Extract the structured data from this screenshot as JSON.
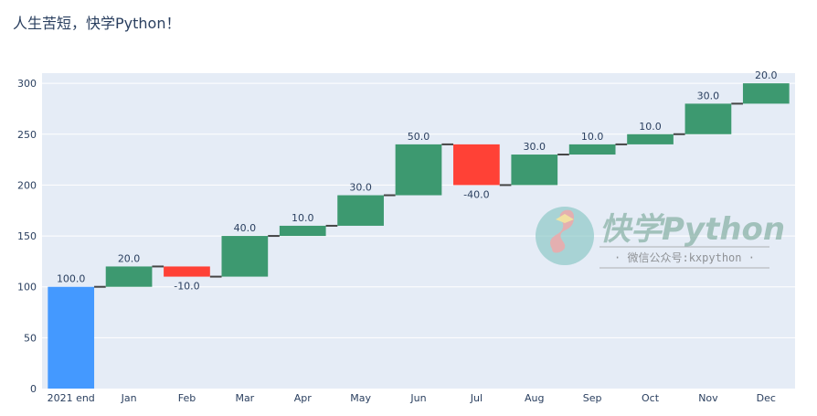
{
  "title": "人生苦短，快学Python！",
  "chart_data": {
    "type": "waterfall",
    "categories": [
      "2021 end",
      "Jan",
      "Feb",
      "Mar",
      "Apr",
      "May",
      "Jun",
      "Jul",
      "Aug",
      "Sep",
      "Oct",
      "Nov",
      "Dec"
    ],
    "measures": [
      "absolute",
      "relative",
      "relative",
      "relative",
      "relative",
      "relative",
      "relative",
      "relative",
      "relative",
      "relative",
      "relative",
      "relative",
      "relative"
    ],
    "values": [
      100,
      20,
      -10,
      40,
      10,
      30,
      50,
      -40,
      30,
      10,
      10,
      30,
      20
    ],
    "data_labels": [
      "100.0",
      "20.0",
      "-10.0",
      "40.0",
      "10.0",
      "30.0",
      "50.0",
      "-40.0",
      "30.0",
      "10.0",
      "10.0",
      "30.0",
      "20.0"
    ],
    "ylim": [
      0,
      310
    ],
    "yticks": [
      0,
      50,
      100,
      150,
      200,
      250,
      300
    ],
    "grid": true,
    "colors": {
      "total": "#4499ff",
      "increasing": "#3d9970",
      "decreasing": "#ff4136",
      "connector": "#444444",
      "plot_bg": "#e5ecf6",
      "grid": "#ffffff"
    }
  },
  "watermark": {
    "title": "快学Python",
    "subtitle": "· 微信公众号:kxpython ·"
  }
}
